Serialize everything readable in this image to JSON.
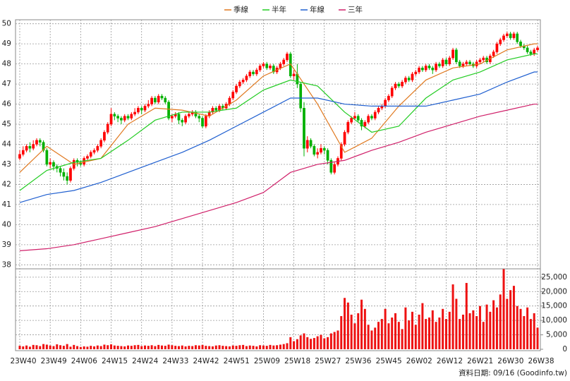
{
  "chart_data": {
    "type": "candlestick",
    "series": [
      {
        "name": "季線",
        "color": "#e0781e",
        "x": [
          0,
          8,
          16,
          24,
          32,
          40,
          48,
          56,
          64,
          72,
          80,
          88,
          96,
          104,
          112,
          120,
          128,
          136,
          144,
          152,
          153
        ],
        "values": [
          42.6,
          43.9,
          43.0,
          43.3,
          45.0,
          45.8,
          45.7,
          45.4,
          46.2,
          47.4,
          48.0,
          46.0,
          43.6,
          44.3,
          45.9,
          47.2,
          47.8,
          48.0,
          48.7,
          49.0,
          49.0
        ]
      },
      {
        "name": "半年",
        "color": "#22cc22",
        "x": [
          0,
          8,
          16,
          24,
          32,
          40,
          48,
          56,
          64,
          72,
          80,
          88,
          96,
          104,
          112,
          120,
          128,
          136,
          144,
          152,
          153
        ],
        "values": [
          41.7,
          42.7,
          43.1,
          43.3,
          44.2,
          45.2,
          45.6,
          45.6,
          45.8,
          46.7,
          47.2,
          46.9,
          45.6,
          44.6,
          44.9,
          46.3,
          47.2,
          47.6,
          48.2,
          48.5,
          48.5
        ]
      },
      {
        "name": "年線",
        "color": "#1f5fd0",
        "x": [
          0,
          8,
          16,
          24,
          32,
          40,
          48,
          56,
          64,
          72,
          80,
          88,
          96,
          104,
          112,
          120,
          128,
          136,
          144,
          152,
          153
        ],
        "values": [
          41.1,
          41.5,
          41.7,
          42.1,
          42.6,
          43.1,
          43.6,
          44.2,
          44.9,
          45.6,
          46.3,
          46.3,
          46.0,
          45.9,
          45.9,
          45.9,
          46.2,
          46.5,
          47.1,
          47.6,
          47.6
        ]
      },
      {
        "name": "三年",
        "color": "#d0206a",
        "x": [
          0,
          8,
          16,
          24,
          32,
          40,
          48,
          56,
          64,
          72,
          80,
          88,
          96,
          104,
          112,
          120,
          128,
          136,
          144,
          152,
          153
        ],
        "values": [
          38.7,
          38.8,
          39.0,
          39.3,
          39.6,
          39.9,
          40.3,
          40.7,
          41.1,
          41.6,
          42.6,
          43.0,
          43.2,
          43.7,
          44.1,
          44.6,
          45.0,
          45.4,
          45.7,
          46.0,
          46.0
        ]
      }
    ],
    "categories": [
      "23W40",
      null,
      null,
      null,
      null,
      null,
      null,
      null,
      null,
      "23W49",
      null,
      null,
      null,
      null,
      null,
      null,
      null,
      null,
      "24W06",
      null,
      null,
      null,
      null,
      null,
      null,
      null,
      null,
      "24W15",
      null,
      null,
      null,
      null,
      null,
      null,
      null,
      null,
      "24W24",
      null,
      null,
      null,
      null,
      null,
      null,
      null,
      null,
      "24W33",
      null,
      null,
      null,
      null,
      null,
      null,
      null,
      null,
      "24W42",
      null,
      null,
      null,
      null,
      null,
      null,
      null,
      null,
      "24W51",
      null,
      null,
      null,
      null,
      null,
      null,
      null,
      null,
      "25W09",
      null,
      null,
      null,
      null,
      null,
      null,
      null,
      null,
      "25W18",
      null,
      null,
      null,
      null,
      null,
      null,
      null,
      null,
      "25W27",
      null,
      null,
      null,
      null,
      null,
      null,
      null,
      null,
      "25W36",
      null,
      null,
      null,
      null,
      null,
      null,
      null,
      null,
      "25W45",
      null,
      null,
      null,
      null,
      null,
      null,
      null,
      null,
      "26W02",
      null,
      null,
      null,
      null,
      null,
      null,
      null,
      null,
      "26W12",
      null,
      null,
      null,
      null,
      null,
      null,
      null,
      null,
      "26W21",
      null,
      null,
      null,
      null,
      null,
      null,
      null,
      null,
      "26W30",
      null,
      null,
      null,
      null,
      null,
      null,
      null,
      null,
      "26W38"
    ],
    "candles": [
      [
        43.3,
        43.7,
        43.2,
        43.5
      ],
      [
        43.5,
        43.9,
        43.4,
        43.7
      ],
      [
        43.7,
        44.0,
        43.6,
        43.9
      ],
      [
        43.9,
        44.1,
        43.6,
        43.8
      ],
      [
        43.8,
        44.2,
        43.7,
        44.0
      ],
      [
        44.0,
        44.3,
        43.9,
        44.2
      ],
      [
        44.2,
        44.3,
        43.9,
        44.1
      ],
      [
        44.1,
        44.2,
        43.6,
        43.7
      ],
      [
        43.7,
        43.8,
        42.9,
        43.0
      ],
      [
        43.0,
        43.3,
        42.8,
        43.1
      ],
      [
        43.1,
        43.2,
        42.7,
        42.9
      ],
      [
        42.9,
        43.0,
        42.6,
        42.8
      ],
      [
        42.8,
        42.9,
        42.4,
        42.6
      ],
      [
        42.6,
        42.8,
        42.2,
        42.4
      ],
      [
        42.4,
        42.6,
        42.0,
        42.2
      ],
      [
        42.2,
        42.9,
        42.1,
        42.8
      ],
      [
        42.8,
        43.3,
        42.7,
        43.2
      ],
      [
        43.2,
        43.3,
        42.9,
        43.1
      ],
      [
        43.1,
        43.2,
        42.9,
        43.0
      ],
      [
        43.0,
        43.4,
        42.9,
        43.3
      ],
      [
        43.3,
        43.5,
        43.2,
        43.4
      ],
      [
        43.4,
        43.7,
        43.3,
        43.6
      ],
      [
        43.6,
        43.8,
        43.5,
        43.7
      ],
      [
        43.7,
        44.0,
        43.6,
        43.9
      ],
      [
        43.9,
        44.3,
        43.8,
        44.2
      ],
      [
        44.2,
        44.7,
        44.1,
        44.6
      ],
      [
        44.6,
        45.1,
        44.5,
        45.0
      ],
      [
        45.0,
        45.8,
        44.9,
        45.5
      ],
      [
        45.5,
        45.6,
        45.2,
        45.4
      ],
      [
        45.4,
        45.5,
        45.1,
        45.3
      ],
      [
        45.3,
        45.4,
        45.0,
        45.2
      ],
      [
        45.2,
        45.5,
        45.1,
        45.4
      ],
      [
        45.4,
        45.5,
        45.2,
        45.3
      ],
      [
        45.3,
        45.6,
        45.2,
        45.5
      ],
      [
        45.5,
        45.8,
        45.4,
        45.6
      ],
      [
        45.6,
        45.9,
        45.5,
        45.8
      ],
      [
        45.8,
        45.9,
        45.5,
        45.7
      ],
      [
        45.7,
        46.0,
        45.6,
        45.9
      ],
      [
        45.9,
        46.2,
        45.8,
        46.0
      ],
      [
        46.0,
        46.4,
        45.9,
        46.3
      ],
      [
        46.3,
        46.4,
        46.0,
        46.1
      ],
      [
        46.1,
        46.5,
        46.0,
        46.4
      ],
      [
        46.4,
        46.5,
        46.2,
        46.3
      ],
      [
        46.3,
        46.4,
        46.0,
        46.1
      ],
      [
        46.1,
        46.2,
        45.2,
        45.3
      ],
      [
        45.3,
        45.5,
        45.1,
        45.4
      ],
      [
        45.4,
        45.6,
        45.3,
        45.5
      ],
      [
        45.5,
        45.6,
        45.0,
        45.2
      ],
      [
        45.2,
        45.3,
        44.9,
        45.1
      ],
      [
        45.1,
        45.5,
        45.0,
        45.4
      ],
      [
        45.4,
        45.6,
        45.3,
        45.5
      ],
      [
        45.5,
        45.7,
        45.4,
        45.6
      ],
      [
        45.6,
        45.7,
        45.3,
        45.4
      ],
      [
        45.4,
        45.5,
        45.1,
        45.3
      ],
      [
        45.3,
        45.4,
        44.8,
        44.9
      ],
      [
        44.9,
        45.5,
        44.8,
        45.4
      ],
      [
        45.4,
        45.7,
        45.3,
        45.6
      ],
      [
        45.6,
        45.9,
        45.5,
        45.8
      ],
      [
        45.8,
        45.9,
        45.6,
        45.7
      ],
      [
        45.7,
        46.0,
        45.6,
        45.9
      ],
      [
        45.9,
        46.0,
        45.7,
        45.8
      ],
      [
        45.8,
        46.1,
        45.7,
        46.0
      ],
      [
        46.0,
        46.4,
        45.9,
        46.3
      ],
      [
        46.3,
        46.7,
        46.2,
        46.6
      ],
      [
        46.6,
        47.0,
        46.5,
        46.9
      ],
      [
        46.9,
        47.2,
        46.8,
        47.1
      ],
      [
        47.1,
        47.3,
        47.0,
        47.2
      ],
      [
        47.2,
        47.5,
        47.1,
        47.4
      ],
      [
        47.4,
        47.7,
        47.3,
        47.6
      ],
      [
        47.6,
        47.7,
        47.4,
        47.5
      ],
      [
        47.5,
        47.8,
        47.4,
        47.7
      ],
      [
        47.7,
        48.0,
        47.6,
        47.9
      ],
      [
        47.9,
        48.1,
        47.8,
        48.0
      ],
      [
        48.0,
        48.1,
        47.7,
        47.8
      ],
      [
        47.8,
        48.0,
        47.7,
        47.9
      ],
      [
        47.9,
        48.0,
        47.5,
        47.6
      ],
      [
        47.6,
        47.9,
        47.5,
        47.8
      ],
      [
        47.8,
        48.1,
        47.7,
        48.0
      ],
      [
        48.0,
        48.3,
        47.9,
        48.2
      ],
      [
        48.2,
        48.6,
        48.1,
        48.5
      ],
      [
        48.5,
        48.6,
        47.3,
        47.4
      ],
      [
        47.4,
        47.7,
        47.2,
        47.5
      ],
      [
        47.5,
        48.0,
        46.8,
        47.0
      ],
      [
        47.0,
        47.1,
        45.6,
        45.8
      ],
      [
        45.8,
        46.1,
        43.4,
        43.8
      ],
      [
        43.8,
        44.4,
        43.6,
        44.2
      ],
      [
        44.2,
        44.3,
        43.8,
        43.9
      ],
      [
        43.9,
        44.0,
        43.4,
        43.5
      ],
      [
        43.5,
        43.8,
        43.3,
        43.6
      ],
      [
        43.6,
        44.0,
        43.5,
        43.8
      ],
      [
        43.8,
        43.9,
        43.5,
        43.7
      ],
      [
        43.7,
        43.8,
        43.0,
        43.2
      ],
      [
        43.2,
        43.3,
        42.5,
        42.6
      ],
      [
        42.6,
        43.1,
        42.5,
        43.0
      ],
      [
        43.0,
        43.4,
        42.9,
        43.3
      ],
      [
        43.3,
        44.1,
        43.2,
        44.0
      ],
      [
        44.0,
        44.7,
        43.9,
        44.6
      ],
      [
        44.6,
        45.2,
        44.5,
        45.1
      ],
      [
        45.1,
        45.4,
        45.0,
        45.3
      ],
      [
        45.3,
        45.6,
        45.2,
        45.4
      ],
      [
        45.4,
        45.5,
        45.1,
        45.2
      ],
      [
        45.2,
        45.3,
        44.7,
        44.9
      ],
      [
        44.9,
        45.2,
        44.8,
        45.1
      ],
      [
        45.1,
        45.5,
        45.0,
        45.4
      ],
      [
        45.4,
        45.5,
        45.2,
        45.3
      ],
      [
        45.3,
        45.7,
        45.2,
        45.6
      ],
      [
        45.6,
        45.9,
        45.5,
        45.8
      ],
      [
        45.8,
        46.0,
        45.7,
        45.9
      ],
      [
        45.9,
        46.3,
        45.8,
        46.2
      ],
      [
        46.2,
        46.5,
        46.1,
        46.4
      ],
      [
        46.4,
        46.9,
        46.3,
        46.8
      ],
      [
        46.8,
        47.1,
        46.7,
        47.0
      ],
      [
        47.0,
        47.1,
        46.8,
        46.9
      ],
      [
        46.9,
        47.2,
        46.8,
        47.1
      ],
      [
        47.1,
        47.4,
        47.0,
        47.3
      ],
      [
        47.3,
        47.4,
        47.1,
        47.2
      ],
      [
        47.2,
        47.6,
        47.1,
        47.5
      ],
      [
        47.5,
        47.7,
        47.4,
        47.6
      ],
      [
        47.6,
        47.9,
        47.5,
        47.8
      ],
      [
        47.8,
        47.9,
        47.6,
        47.7
      ],
      [
        47.7,
        48.0,
        47.6,
        47.9
      ],
      [
        47.9,
        48.0,
        47.7,
        47.8
      ],
      [
        47.8,
        47.9,
        47.5,
        47.7
      ],
      [
        47.7,
        48.1,
        47.6,
        48.0
      ],
      [
        48.0,
        48.1,
        47.8,
        47.9
      ],
      [
        47.9,
        48.3,
        47.8,
        48.2
      ],
      [
        48.2,
        48.3,
        47.9,
        48.0
      ],
      [
        48.0,
        48.4,
        47.9,
        48.3
      ],
      [
        48.3,
        48.8,
        48.2,
        48.7
      ],
      [
        48.7,
        48.8,
        48.0,
        48.1
      ],
      [
        48.1,
        48.2,
        47.8,
        47.9
      ],
      [
        47.9,
        48.1,
        47.8,
        48.0
      ],
      [
        48.0,
        48.2,
        47.9,
        48.1
      ],
      [
        48.1,
        48.2,
        47.9,
        48.0
      ],
      [
        48.0,
        48.1,
        47.8,
        47.9
      ],
      [
        47.9,
        48.2,
        47.8,
        48.1
      ],
      [
        48.1,
        48.3,
        48.0,
        48.2
      ],
      [
        48.2,
        48.4,
        48.1,
        48.3
      ],
      [
        48.3,
        48.4,
        48.0,
        48.1
      ],
      [
        48.1,
        48.5,
        48.0,
        48.4
      ],
      [
        48.4,
        48.7,
        48.3,
        48.6
      ],
      [
        48.6,
        49.1,
        48.5,
        49.0
      ],
      [
        49.0,
        49.3,
        48.9,
        49.2
      ],
      [
        49.2,
        49.5,
        49.1,
        49.4
      ],
      [
        49.4,
        49.6,
        49.3,
        49.5
      ],
      [
        49.5,
        49.6,
        49.2,
        49.3
      ],
      [
        49.3,
        49.6,
        49.2,
        49.5
      ],
      [
        49.5,
        49.6,
        49.0,
        49.1
      ],
      [
        49.1,
        49.2,
        48.8,
        48.9
      ],
      [
        48.9,
        49.0,
        48.7,
        48.8
      ],
      [
        48.8,
        48.9,
        48.5,
        48.6
      ],
      [
        48.6,
        48.7,
        48.4,
        48.5
      ],
      [
        48.5,
        48.8,
        48.4,
        48.7
      ],
      [
        48.7,
        48.9,
        48.6,
        48.8
      ]
    ],
    "up_color": "#ff0000",
    "down_color": "#00b000",
    "volume": {
      "color": "#ee1111",
      "axis": "y2",
      "values": [
        1200,
        1000,
        1300,
        900,
        1500,
        1400,
        1100,
        1800,
        1600,
        1300,
        1100,
        1700,
        1400,
        1200,
        1800,
        900,
        1500,
        1100,
        800,
        1000,
        900,
        1200,
        1000,
        1300,
        1100,
        1600,
        1400,
        1700,
        1300,
        1200,
        1100,
        1000,
        1300,
        1200,
        1400,
        1500,
        1100,
        1300,
        1200,
        1400,
        1100,
        1500,
        1300,
        1200,
        1600,
        1400,
        1200,
        1100,
        1300,
        1000,
        1200,
        1100,
        1400,
        1300,
        1500,
        1200,
        1100,
        1000,
        1300,
        1400,
        1200,
        1100,
        1000,
        1300,
        1200,
        1400,
        1500,
        1100,
        1300,
        1200,
        1000,
        1400,
        1300,
        1200,
        1500,
        1300,
        1400,
        1600,
        1800,
        2100,
        4200,
        2800,
        3500,
        4800,
        5500,
        4200,
        3600,
        3900,
        4500,
        5000,
        3800,
        4200,
        5500,
        6000,
        6500,
        11500,
        17800,
        16200,
        12000,
        9000,
        12500,
        17200,
        14000,
        8500,
        6500,
        7500,
        9500,
        10500,
        14000,
        9000,
        11000,
        12500,
        9500,
        7000,
        14500,
        10000,
        13000,
        8500,
        12000,
        16000,
        10500,
        11000,
        13500,
        9500,
        11000,
        14000,
        10500,
        13000,
        22500,
        17500,
        10500,
        12000,
        23000,
        12500,
        13500,
        11500,
        15000,
        9500,
        15500,
        13000,
        17000,
        14500,
        19000,
        27800,
        17500,
        20500,
        22000,
        15000,
        14000,
        11500,
        14500,
        10500,
        12500,
        7500
      ]
    },
    "ylim": [
      37.8,
      50.2
    ],
    "yticks": [
      38,
      39,
      40,
      41,
      42,
      43,
      44,
      45,
      46,
      47,
      48,
      49,
      50
    ],
    "y2lim": [
      0,
      27900
    ],
    "y2ticks": [
      0,
      {
        "value": 5000,
        "label": "5,000"
      },
      {
        "value": 10000,
        "label": "10,000"
      },
      {
        "value": 15000,
        "label": "15,000"
      },
      {
        "value": 20000,
        "label": "20,000"
      },
      {
        "value": 25000,
        "label": "25,000"
      }
    ],
    "grid": true,
    "source": "資料日期: 09/16 (Goodinfo.tw)"
  }
}
